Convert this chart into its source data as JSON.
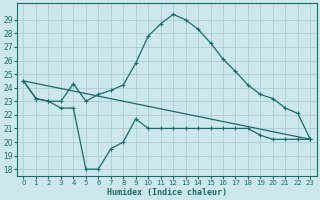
{
  "xlabel": "Humidex (Indice chaleur)",
  "bg_color": "#cce8ec",
  "grid_color": "#aacdd4",
  "line_color": "#1a6b6b",
  "xlim": [
    -0.5,
    23.5
  ],
  "ylim": [
    17.5,
    30.2
  ],
  "xticks": [
    0,
    1,
    2,
    3,
    4,
    5,
    6,
    7,
    8,
    9,
    10,
    11,
    12,
    13,
    14,
    15,
    16,
    17,
    18,
    19,
    20,
    21,
    22,
    23
  ],
  "yticks": [
    18,
    19,
    20,
    21,
    22,
    23,
    24,
    25,
    26,
    27,
    28,
    29
  ],
  "line1_x": [
    0,
    1,
    2,
    3,
    4,
    5,
    6,
    7,
    8,
    9,
    10,
    11,
    12,
    13,
    14,
    15,
    16,
    17,
    18,
    19,
    20,
    21,
    22,
    23
  ],
  "line1_y": [
    24.5,
    23.2,
    23.0,
    23.0,
    24.3,
    23.0,
    23.5,
    23.8,
    24.2,
    25.8,
    27.8,
    28.7,
    29.4,
    29.0,
    28.3,
    27.3,
    26.1,
    25.2,
    24.2,
    23.5,
    23.2,
    22.5,
    22.1,
    20.2
  ],
  "line2_x": [
    0,
    1,
    2,
    3,
    4,
    5,
    6,
    7,
    8,
    9,
    10,
    11,
    12,
    13,
    14,
    15,
    16,
    17,
    18,
    19,
    20,
    21,
    22,
    23
  ],
  "line2_y": [
    24.5,
    23.2,
    23.0,
    22.5,
    22.5,
    18.0,
    18.0,
    19.5,
    20.0,
    21.7,
    21.0,
    21.0,
    21.0,
    21.0,
    21.0,
    21.0,
    21.0,
    21.0,
    21.0,
    20.5,
    20.2,
    20.2,
    20.2,
    20.2
  ],
  "line3_x": [
    0,
    23
  ],
  "line3_y": [
    24.5,
    20.2
  ]
}
